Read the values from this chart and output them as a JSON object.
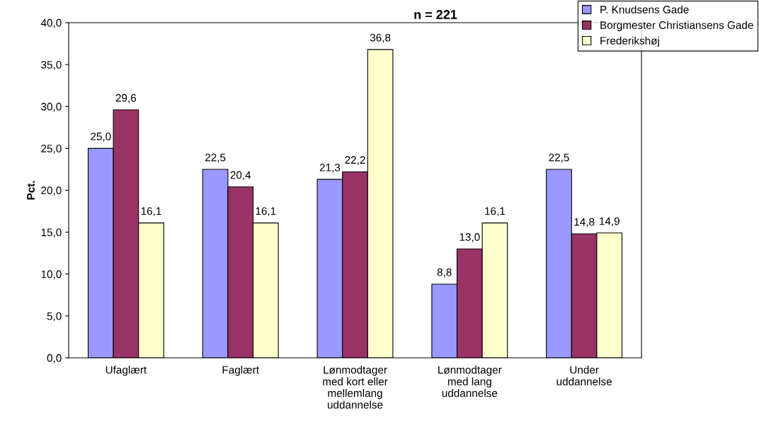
{
  "chart_data": {
    "type": "bar",
    "ylabel": "Pct.",
    "annotations": [
      "n = 221"
    ],
    "categories": [
      "Ufaglært",
      "Faglært",
      "Lønmodtager\nmed kort eller\nmellemlang\nuddannelse",
      "Lønmodtager\nmed lang\nuddannelse",
      "Under\nuddannelse"
    ],
    "series": [
      {
        "name": "P. Knudsens Gade",
        "color": "#9999ff",
        "values": [
          25.0,
          22.5,
          21.3,
          8.8,
          22.5
        ],
        "value_labels": [
          "25,0",
          "22,5",
          "21,3",
          "8,8",
          "22,5"
        ]
      },
      {
        "name": "Borgmester Christiansens Gade",
        "color": "#993366",
        "values": [
          29.6,
          20.4,
          22.2,
          13.0,
          14.8
        ],
        "value_labels": [
          "29,6",
          "20,4",
          "22,2",
          "13,0",
          "14,8"
        ]
      },
      {
        "name": "Frederikshøj",
        "color": "#ffffcc",
        "values": [
          16.1,
          16.1,
          36.8,
          16.1,
          14.9
        ],
        "value_labels": [
          "16,1",
          "16,1",
          "36,8",
          "16,1",
          "14,9"
        ]
      }
    ],
    "ylim": [
      0,
      40
    ],
    "yticks": [
      {
        "value": 0,
        "label": "0,0"
      },
      {
        "value": 5,
        "label": "5,0"
      },
      {
        "value": 10,
        "label": "10,0"
      },
      {
        "value": 15,
        "label": "15,0"
      },
      {
        "value": 20,
        "label": "20,0"
      },
      {
        "value": 25,
        "label": "25,0"
      },
      {
        "value": 30,
        "label": "30,0"
      },
      {
        "value": 35,
        "label": "35,0"
      },
      {
        "value": 40,
        "label": "40,0"
      }
    ],
    "grid": false,
    "legend": "top right"
  }
}
